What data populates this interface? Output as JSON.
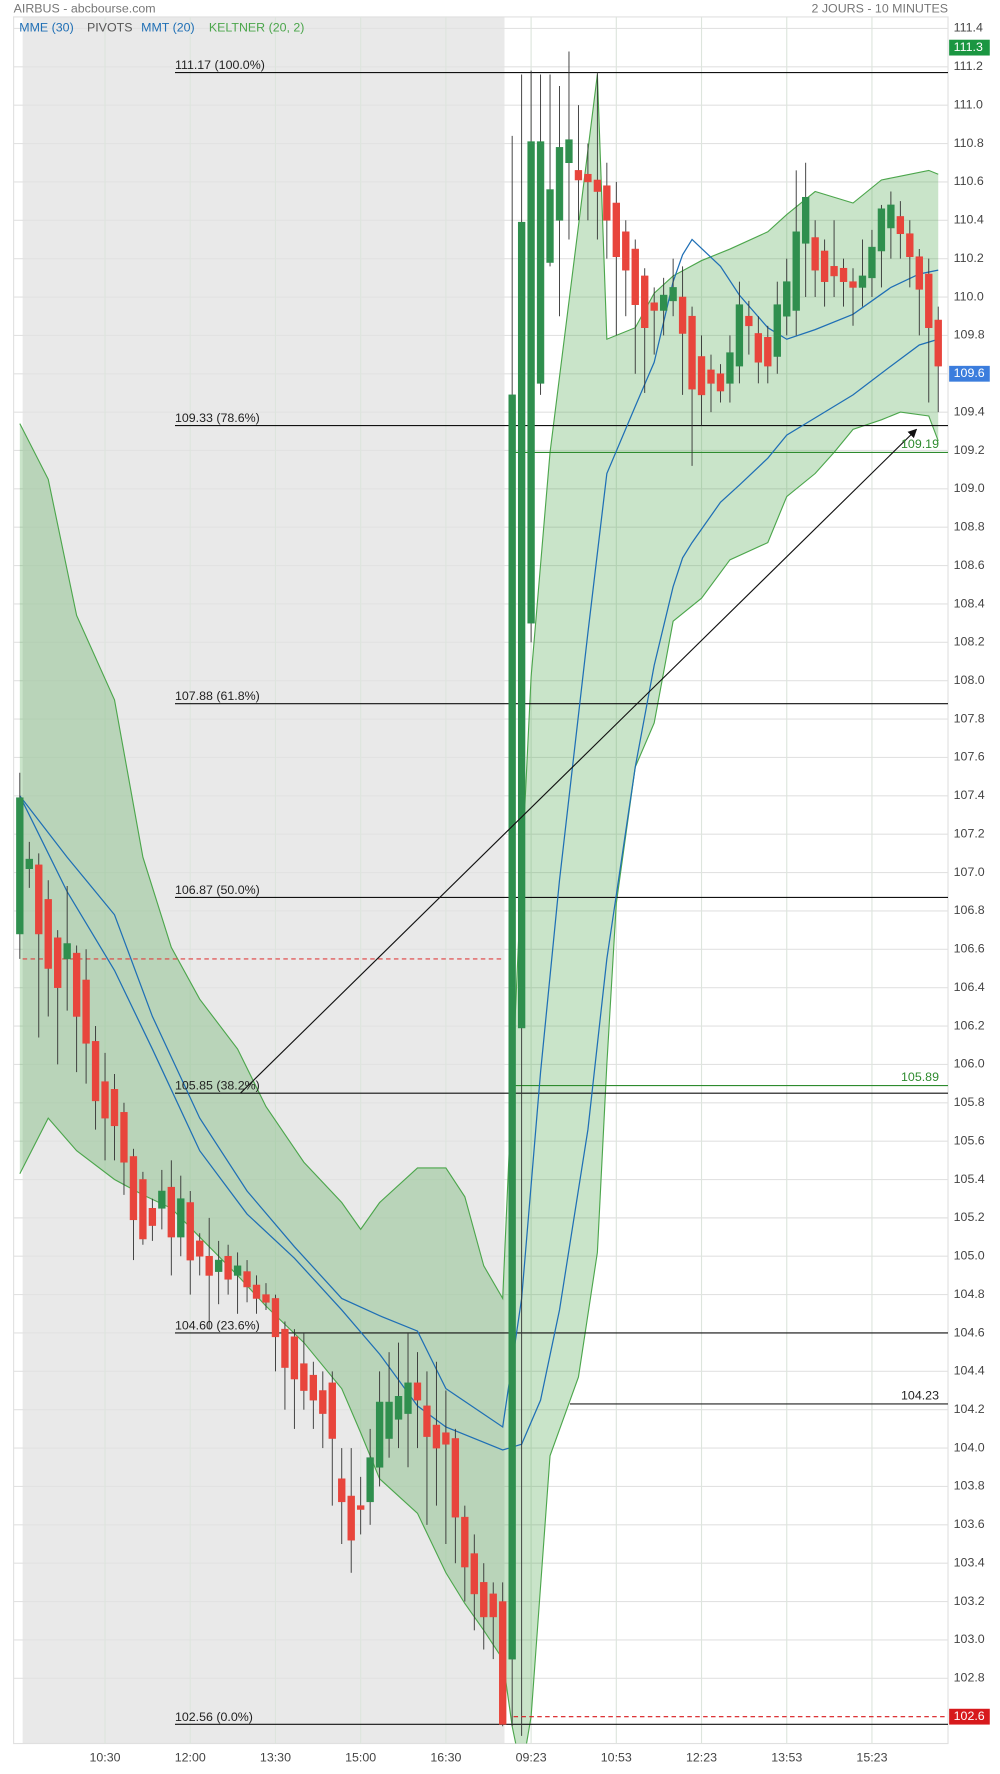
{
  "chart_data": {
    "type": "candlestick",
    "title": "AIRBUS - abcbourse.com",
    "subtitle": "2 JOURS - 10 MINUTES",
    "categories": [
      null,
      null,
      null,
      null,
      null,
      null,
      null,
      null,
      null,
      "10:30",
      null,
      null,
      null,
      null,
      null,
      null,
      null,
      null,
      "12:00",
      null,
      null,
      null,
      null,
      null,
      null,
      null,
      null,
      "13:30",
      null,
      null,
      null,
      null,
      null,
      null,
      null,
      null,
      "15:00",
      null,
      null,
      null,
      null,
      null,
      null,
      null,
      null,
      "16:30",
      null,
      null,
      null,
      null,
      null,
      null,
      null,
      null,
      "09:23",
      null,
      null,
      null,
      null,
      null,
      null,
      null,
      null,
      "10:53",
      null,
      null,
      null,
      null,
      null,
      null,
      null,
      null,
      "12:23",
      null,
      null,
      null,
      null,
      null,
      null,
      null,
      null,
      "13:53",
      null,
      null,
      null,
      null,
      null,
      null,
      null,
      null,
      "15:23",
      null,
      null,
      null,
      null,
      null,
      null,
      null
    ],
    "open": [
      106.68,
      107.02,
      107.04,
      106.86,
      106.66,
      106.55,
      106.58,
      106.44,
      106.12,
      105.91,
      105.87,
      105.75,
      105.52,
      105.4,
      105.25,
      105.25,
      105.36,
      105.1,
      105.28,
      105.08,
      105.0,
      104.92,
      105.0,
      104.9,
      104.92,
      104.85,
      104.8,
      104.78,
      104.62,
      104.58,
      104.44,
      104.38,
      104.3,
      104.34,
      103.84,
      103.75,
      103.7,
      103.72,
      103.9,
      104.05,
      104.15,
      104.18,
      104.34,
      104.22,
      104.12,
      104.08,
      104.05,
      103.64,
      103.45,
      103.3,
      103.24,
      103.2,
      102.9,
      106.19,
      108.3,
      109.55,
      110.18,
      110.4,
      110.7,
      110.66,
      110.64,
      110.61,
      110.58,
      110.49,
      110.34,
      110.25,
      110.11,
      109.97,
      109.93,
      109.98,
      110.0,
      109.9,
      109.69,
      109.62,
      109.6,
      109.55,
      109.64,
      109.9,
      109.81,
      109.79,
      109.69,
      109.9,
      109.93,
      110.28,
      110.31,
      110.24,
      110.16,
      110.15,
      110.08,
      110.05,
      110.1,
      110.24,
      110.36,
      110.42,
      110.33,
      110.21,
      110.12,
      109.88
    ],
    "high": [
      107.52,
      107.16,
      107.1,
      106.96,
      106.7,
      106.93,
      106.62,
      106.6,
      106.2,
      106.06,
      105.95,
      105.8,
      105.56,
      105.44,
      105.3,
      105.45,
      105.5,
      105.42,
      105.34,
      105.12,
      105.2,
      105.08,
      105.06,
      105.02,
      104.98,
      104.9,
      104.86,
      104.8,
      104.66,
      104.62,
      104.6,
      104.45,
      104.4,
      104.4,
      104.0,
      104.0,
      103.85,
      104.1,
      104.4,
      104.5,
      104.55,
      104.6,
      104.5,
      104.4,
      104.45,
      104.3,
      104.1,
      103.7,
      103.55,
      103.4,
      103.3,
      103.3,
      110.84,
      111.16,
      111.18,
      111.16,
      111.16,
      111.1,
      111.28,
      111.0,
      110.8,
      111.17,
      110.7,
      110.6,
      110.4,
      110.3,
      110.15,
      110.05,
      110.1,
      110.2,
      110.16,
      109.95,
      109.8,
      109.7,
      109.65,
      109.8,
      110.08,
      109.98,
      109.9,
      109.85,
      110.08,
      110.2,
      110.66,
      110.7,
      110.4,
      110.3,
      110.4,
      110.2,
      110.15,
      110.3,
      110.35,
      110.48,
      110.55,
      110.5,
      110.4,
      110.25,
      110.2,
      109.95
    ],
    "low": [
      106.55,
      106.92,
      106.14,
      106.25,
      106.0,
      106.28,
      105.96,
      105.9,
      105.66,
      105.5,
      105.5,
      105.32,
      104.98,
      105.06,
      105.08,
      105.14,
      104.9,
      105.0,
      104.8,
      104.9,
      104.62,
      104.75,
      104.8,
      104.7,
      104.76,
      104.7,
      104.72,
      104.4,
      104.2,
      104.1,
      104.2,
      104.1,
      104.0,
      103.7,
      103.5,
      103.35,
      103.55,
      103.6,
      103.8,
      103.95,
      104.0,
      103.9,
      104.0,
      103.6,
      103.7,
      103.5,
      103.4,
      103.2,
      103.05,
      102.95,
      102.9,
      102.55,
      102.55,
      102.5,
      108.2,
      109.49,
      110.16,
      109.9,
      110.3,
      110.4,
      110.4,
      110.3,
      110.2,
      109.8,
      109.9,
      109.6,
      109.5,
      109.7,
      109.8,
      109.9,
      109.49,
      109.12,
      109.33,
      109.4,
      109.45,
      109.45,
      109.55,
      109.7,
      109.55,
      109.55,
      109.6,
      109.8,
      109.8,
      110.0,
      110.0,
      109.95,
      110.0,
      109.95,
      109.85,
      109.95,
      110.0,
      110.05,
      110.2,
      110.2,
      110.05,
      109.8,
      109.45,
      109.4
    ],
    "close": [
      107.39,
      107.07,
      106.68,
      106.5,
      106.4,
      106.63,
      106.25,
      106.11,
      105.81,
      105.72,
      105.68,
      105.49,
      105.19,
      105.09,
      105.16,
      105.34,
      105.1,
      105.3,
      104.98,
      105.0,
      104.9,
      104.98,
      104.88,
      104.95,
      104.84,
      104.78,
      104.76,
      104.58,
      104.42,
      104.36,
      104.3,
      104.25,
      104.18,
      104.05,
      103.72,
      103.52,
      103.68,
      103.95,
      104.24,
      104.24,
      104.27,
      104.34,
      104.25,
      104.06,
      104.0,
      104.02,
      103.64,
      103.38,
      103.24,
      103.12,
      103.12,
      102.56,
      109.49,
      110.39,
      110.81,
      110.81,
      110.56,
      110.78,
      110.82,
      110.61,
      110.6,
      110.55,
      110.4,
      110.21,
      110.14,
      109.96,
      109.84,
      109.93,
      110.01,
      110.05,
      109.81,
      109.52,
      109.49,
      109.55,
      109.51,
      109.71,
      109.96,
      109.85,
      109.66,
      109.64,
      109.96,
      110.08,
      110.34,
      110.52,
      110.14,
      110.08,
      110.11,
      110.08,
      110.05,
      110.11,
      110.26,
      110.46,
      110.48,
      110.33,
      110.21,
      110.04,
      109.84,
      109.64
    ],
    "up_color": "#2f8f4e",
    "down_color": "#e8453c",
    "ylim": [
      102.46,
      111.46
    ],
    "yticks": [
      102.8,
      {
        "value": 103,
        "label": "103.0"
      },
      103.2,
      103.4,
      103.6,
      103.8,
      {
        "value": 104,
        "label": "104.0"
      },
      104.2,
      104.4,
      104.6,
      104.8,
      {
        "value": 105,
        "label": "105.0"
      },
      105.2,
      105.4,
      105.6,
      105.8,
      {
        "value": 106,
        "label": "106.0"
      },
      106.2,
      106.4,
      106.6,
      106.8,
      {
        "value": 107,
        "label": "107.0"
      },
      107.2,
      107.4,
      107.6,
      107.8,
      {
        "value": 108,
        "label": "108.0"
      },
      108.2,
      108.4,
      108.6,
      108.8,
      {
        "value": 109,
        "label": "109.0"
      },
      109.2,
      109.4,
      109.6,
      109.8,
      {
        "value": 110,
        "label": "110.0"
      },
      110.2,
      110.4,
      110.6,
      110.8,
      {
        "value": 111,
        "label": "111.0"
      },
      111.2,
      111.4
    ],
    "grid": true,
    "moving_averages": [
      {
        "name": "MME (30)",
        "color": "#1f6fb5",
        "x": [
          0,
          5,
          10,
          14,
          19,
          24,
          29,
          34,
          38,
          42,
          45,
          51,
          53,
          55,
          57,
          60,
          62,
          65,
          67,
          69,
          70,
          71,
          74,
          76,
          79,
          81,
          84,
          88,
          92,
          95,
          97
        ],
        "values": [
          107.4,
          107.08,
          106.78,
          106.25,
          105.72,
          105.34,
          105.05,
          104.78,
          104.69,
          104.61,
          104.31,
          104.11,
          104.78,
          105.96,
          106.96,
          108.25,
          109.08,
          109.43,
          109.66,
          110.08,
          110.22,
          110.3,
          110.16,
          110.01,
          109.84,
          109.78,
          109.83,
          109.91,
          110.05,
          110.12,
          110.14
        ]
      },
      {
        "name": "MMT (20)",
        "color": "#1f6fb5",
        "x": [
          0,
          5,
          10,
          14,
          19,
          24,
          29,
          34,
          38,
          42,
          45,
          51,
          53,
          55,
          57,
          60,
          62,
          65,
          67,
          69,
          70,
          71,
          74,
          76,
          79,
          81,
          84,
          88,
          92,
          95,
          97
        ],
        "values": [
          107.4,
          106.9,
          106.49,
          106.08,
          105.55,
          105.22,
          104.99,
          104.72,
          104.49,
          104.22,
          104.11,
          103.99,
          104.02,
          104.25,
          104.72,
          105.66,
          106.55,
          107.55,
          108.08,
          108.49,
          108.64,
          108.72,
          108.93,
          109.02,
          109.16,
          109.28,
          109.37,
          109.49,
          109.64,
          109.75,
          109.78
        ]
      }
    ],
    "pivots": {
      "name": "PIVOTS",
      "color": "#555555",
      "levels": [
        {
          "value": 109.19,
          "color": "#2e8b2e"
        },
        {
          "value": 105.89,
          "color": "#2e8b2e"
        },
        {
          "value": 104.23,
          "color": "#222222"
        }
      ]
    },
    "keltner": {
      "name": "KELTNER (20, 2)",
      "color": "#4ca64c",
      "x": [
        0,
        3,
        6,
        10,
        13,
        16,
        19,
        23,
        26,
        30,
        34,
        36,
        38,
        42,
        45,
        47,
        49,
        51,
        52,
        53,
        54,
        56,
        59,
        61,
        62,
        63,
        65,
        67,
        69,
        72,
        75,
        79,
        81,
        84,
        86,
        88,
        91,
        93,
        96,
        97
      ],
      "upper": [
        109.34,
        109.05,
        108.34,
        107.9,
        107.08,
        106.61,
        106.34,
        106.08,
        105.78,
        105.49,
        105.28,
        105.14,
        105.28,
        105.46,
        105.46,
        105.31,
        104.95,
        104.78,
        105.9,
        107.0,
        108.02,
        109.19,
        110.37,
        111.16,
        109.78,
        109.8,
        109.84,
        110.02,
        110.11,
        110.19,
        110.25,
        110.34,
        110.43,
        110.55,
        110.52,
        110.49,
        110.61,
        110.63,
        110.66,
        110.64
      ],
      "lower": [
        105.43,
        105.72,
        105.55,
        105.4,
        105.32,
        105.25,
        105.1,
        104.9,
        104.74,
        104.55,
        104.31,
        104.08,
        103.84,
        103.66,
        103.35,
        103.19,
        103.05,
        102.9,
        102.55,
        102.31,
        102.6,
        103.96,
        104.37,
        105.02,
        106.0,
        106.84,
        107.55,
        107.78,
        108.31,
        108.43,
        108.63,
        108.72,
        108.96,
        109.08,
        109.19,
        109.31,
        109.36,
        109.4,
        109.38,
        109.25
      ]
    },
    "fibonacci": [
      {
        "value": 111.17,
        "label": "111.17  (100.0%)"
      },
      {
        "value": 109.33,
        "label": "109.33  (78.6%)"
      },
      {
        "value": 107.88,
        "label": "107.88  (61.8%)"
      },
      {
        "value": 106.87,
        "label": "106.87  (50.0%)"
      },
      {
        "value": 105.85,
        "label": "105.85  (38.2%)"
      },
      {
        "value": 104.6,
        "label": "104.60  (23.6%)"
      },
      {
        "value": 102.56,
        "label": "102.56  (0.0%)"
      }
    ],
    "previous_close": {
      "value": 106.55,
      "color": "#e04040"
    },
    "arrow": {
      "x": [
        23.3,
        94.7
      ],
      "y": [
        105.85,
        109.31
      ]
    },
    "badges": [
      {
        "value": 111.3,
        "color": "#1a9641"
      },
      {
        "value": 109.6,
        "color": "#3b7ddd"
      },
      {
        "value": 102.6,
        "color": "#d7191c"
      }
    ]
  }
}
